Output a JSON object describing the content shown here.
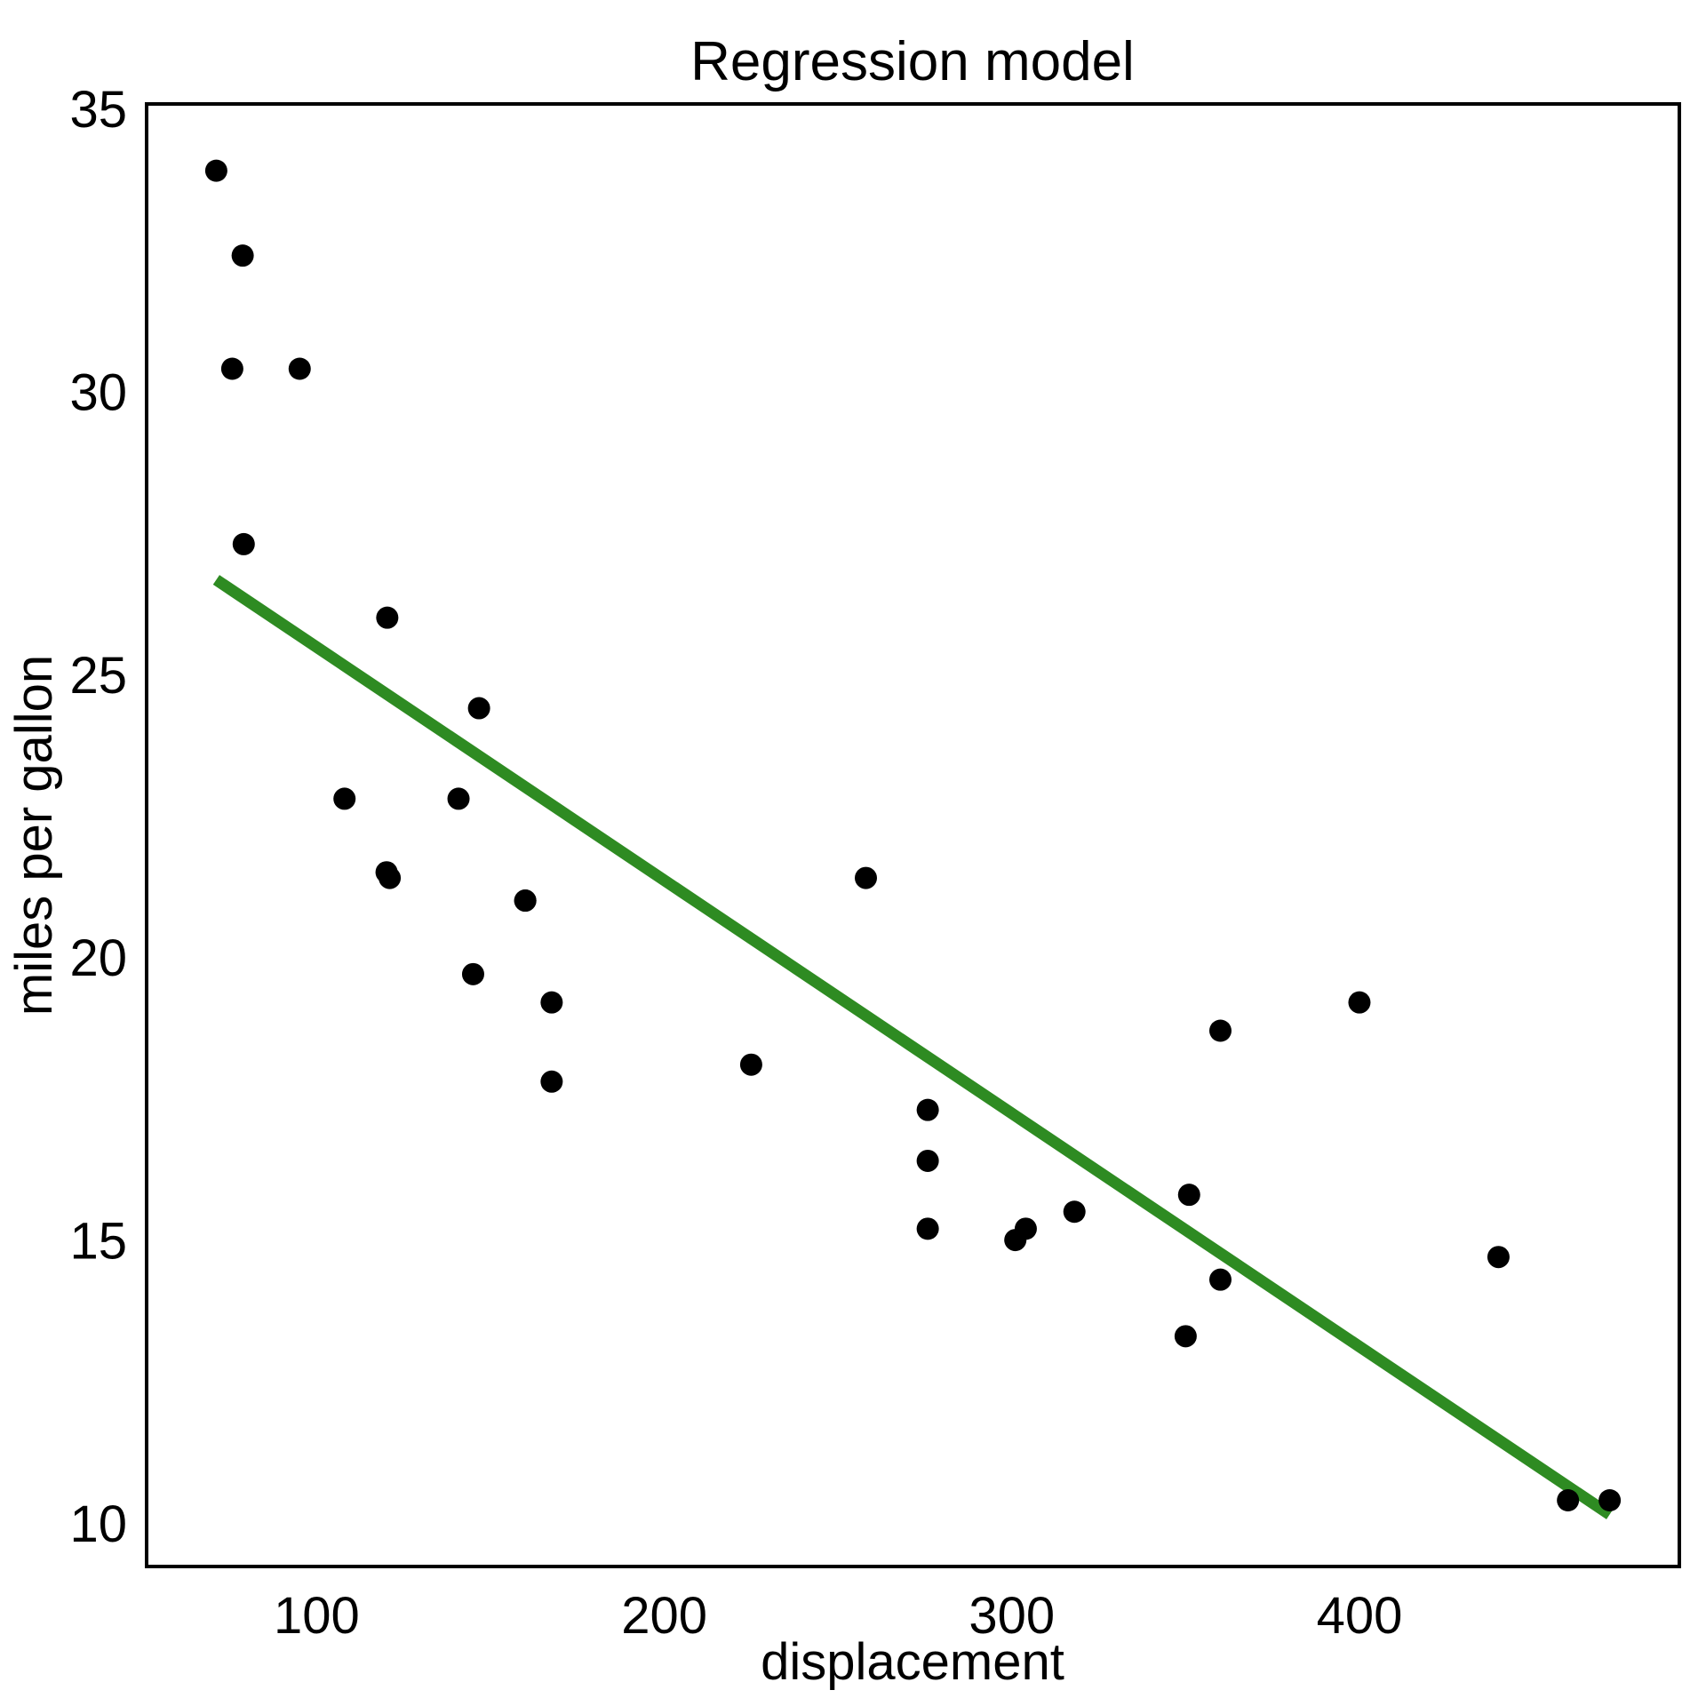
{
  "chart_data": {
    "type": "scatter",
    "title": "Regression model",
    "xlabel": "displacement",
    "ylabel": "miles per gallon",
    "x_ticks": [
      100,
      200,
      300,
      400
    ],
    "y_ticks": [
      10,
      15,
      20,
      25,
      30,
      35
    ],
    "xlim": [
      51.06,
      492.04
    ],
    "ylim": [
      9.23,
      35.08
    ],
    "grid": false,
    "legend": "none",
    "point_color": "#000000",
    "axis_color": "#000000",
    "background_color": "#ffffff",
    "points": [
      [
        160.0,
        21.0
      ],
      [
        160.0,
        21.0
      ],
      [
        108.0,
        22.8
      ],
      [
        258.0,
        21.4
      ],
      [
        360.0,
        18.7
      ],
      [
        225.0,
        18.1
      ],
      [
        360.0,
        14.3
      ],
      [
        146.7,
        24.4
      ],
      [
        140.8,
        22.8
      ],
      [
        167.6,
        19.2
      ],
      [
        167.6,
        17.8
      ],
      [
        275.8,
        16.4
      ],
      [
        275.8,
        17.3
      ],
      [
        275.8,
        15.2
      ],
      [
        472.0,
        10.4
      ],
      [
        460.0,
        10.4
      ],
      [
        440.0,
        14.7
      ],
      [
        78.7,
        32.4
      ],
      [
        75.7,
        30.4
      ],
      [
        71.1,
        33.9
      ],
      [
        120.1,
        21.5
      ],
      [
        318.0,
        15.5
      ],
      [
        304.0,
        15.2
      ],
      [
        350.0,
        13.3
      ],
      [
        400.0,
        19.2
      ],
      [
        79.0,
        27.3
      ],
      [
        120.3,
        26.0
      ],
      [
        95.1,
        30.4
      ],
      [
        351.0,
        15.8
      ],
      [
        145.0,
        19.7
      ],
      [
        301.0,
        15.0
      ],
      [
        121.0,
        21.4
      ]
    ],
    "regression_line": {
      "color": "#2e8b22",
      "slope": -0.0412,
      "intercept": 29.6,
      "x_start": 71.1,
      "y_start": 26.67,
      "x_end": 472.0,
      "y_end": 10.15
    }
  }
}
